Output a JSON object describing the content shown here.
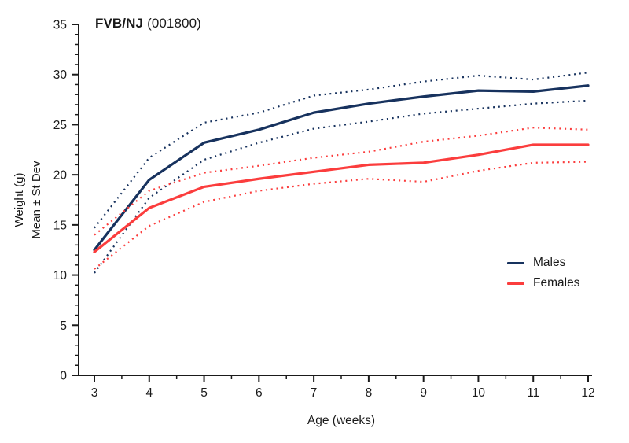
{
  "title": {
    "strain": "FVB/NJ",
    "stock": "(001800)"
  },
  "y_axis": {
    "label_line1": "Weight (g)",
    "label_line2": "Mean ± St Dev",
    "ticks": [
      0,
      5,
      10,
      15,
      20,
      25,
      30,
      35
    ],
    "minor_step": 1,
    "range": [
      0,
      35
    ]
  },
  "x_axis": {
    "label": "Age (weeks)",
    "ticks": [
      3,
      4,
      5,
      6,
      7,
      8,
      9,
      10,
      11,
      12
    ],
    "minor_step": 0.5,
    "range": [
      3,
      12
    ]
  },
  "legend": [
    {
      "label": "Males",
      "color": "#17325e"
    },
    {
      "label": "Females",
      "color": "#fb3d3d"
    }
  ],
  "colors": {
    "males": "#17325e",
    "females": "#fb3d3d",
    "axis": "#1a1a1a",
    "text": "#1a1a1a",
    "background": "#ffffff"
  },
  "chart_data": {
    "type": "line",
    "title": "FVB/NJ (001800)",
    "xlabel": "Age (weeks)",
    "ylabel": "Weight (g) Mean ± St Dev",
    "xlim": [
      3,
      12
    ],
    "ylim": [
      0,
      35
    ],
    "grid": false,
    "legend_position": "right-middle",
    "x": [
      3,
      4,
      5,
      6,
      7,
      8,
      9,
      10,
      11,
      12
    ],
    "series": [
      {
        "name": "Males mean",
        "group": "Males",
        "style": "solid",
        "color": "#17325e",
        "values": [
          12.5,
          19.5,
          23.2,
          24.5,
          26.2,
          27.1,
          27.8,
          28.4,
          28.3,
          28.9
        ]
      },
      {
        "name": "Males upper SD",
        "group": "Males",
        "style": "dotted",
        "color": "#17325e",
        "values": [
          14.7,
          21.7,
          25.2,
          26.2,
          27.9,
          28.5,
          29.3,
          29.9,
          29.5,
          30.2
        ]
      },
      {
        "name": "Males lower SD",
        "group": "Males",
        "style": "dotted",
        "color": "#17325e",
        "values": [
          10.2,
          17.7,
          21.5,
          23.2,
          24.6,
          25.3,
          26.1,
          26.6,
          27.1,
          27.4
        ]
      },
      {
        "name": "Females mean",
        "group": "Females",
        "style": "solid",
        "color": "#fb3d3d",
        "values": [
          12.3,
          16.7,
          18.8,
          19.6,
          20.3,
          21.0,
          21.2,
          22.0,
          23.0,
          23.0
        ]
      },
      {
        "name": "Females upper SD",
        "group": "Females",
        "style": "dotted",
        "color": "#fb3d3d",
        "values": [
          14.0,
          18.4,
          20.2,
          20.9,
          21.7,
          22.3,
          23.3,
          23.9,
          24.7,
          24.5
        ]
      },
      {
        "name": "Females lower SD",
        "group": "Females",
        "style": "dotted",
        "color": "#fb3d3d",
        "values": [
          10.6,
          14.9,
          17.3,
          18.4,
          19.1,
          19.6,
          19.3,
          20.4,
          21.2,
          21.3
        ]
      }
    ]
  }
}
